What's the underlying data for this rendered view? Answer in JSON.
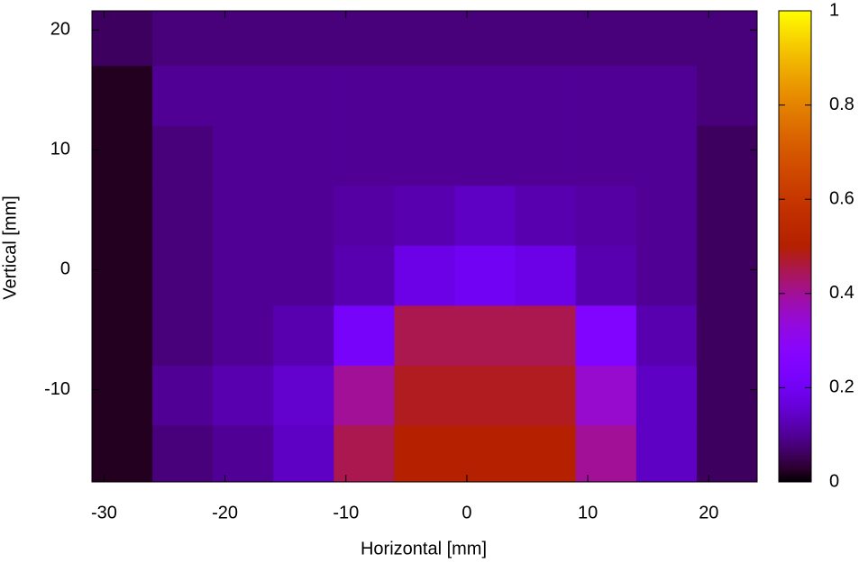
{
  "chart_data": {
    "type": "heatmap",
    "xlabel": "Horizontal [mm]",
    "ylabel": "Vertical [mm]",
    "xlim": [
      -31,
      24
    ],
    "ylim": [
      -17.7,
      21.6
    ],
    "xticks": [
      -30,
      -20,
      -10,
      0,
      10,
      20
    ],
    "yticks": [
      -10,
      0,
      10,
      20
    ],
    "x_edges": [
      -31,
      -26,
      -21,
      -16,
      -11,
      -6,
      -1,
      4,
      9,
      14,
      19,
      24
    ],
    "y_edges": [
      21.6,
      17,
      12,
      7,
      2,
      -3,
      -8,
      -13,
      -17.7
    ],
    "z": [
      [
        0.06,
        0.08,
        0.08,
        0.08,
        0.08,
        0.08,
        0.08,
        0.08,
        0.08,
        0.08,
        0.08
      ],
      [
        0.02,
        0.1,
        0.1,
        0.1,
        0.1,
        0.1,
        0.1,
        0.1,
        0.1,
        0.1,
        0.08
      ],
      [
        0.02,
        0.08,
        0.1,
        0.1,
        0.1,
        0.1,
        0.1,
        0.1,
        0.1,
        0.1,
        0.06
      ],
      [
        0.02,
        0.08,
        0.1,
        0.1,
        0.11,
        0.12,
        0.14,
        0.12,
        0.11,
        0.1,
        0.06
      ],
      [
        0.02,
        0.08,
        0.1,
        0.1,
        0.12,
        0.18,
        0.2,
        0.18,
        0.12,
        0.1,
        0.06
      ],
      [
        0.02,
        0.08,
        0.1,
        0.12,
        0.22,
        0.45,
        0.45,
        0.45,
        0.25,
        0.12,
        0.06
      ],
      [
        0.02,
        0.1,
        0.12,
        0.15,
        0.4,
        0.48,
        0.48,
        0.48,
        0.35,
        0.14,
        0.06
      ],
      [
        0.02,
        0.08,
        0.1,
        0.14,
        0.45,
        0.5,
        0.5,
        0.5,
        0.4,
        0.14,
        0.06
      ]
    ],
    "cblim": [
      0,
      1
    ],
    "cbticks": [
      0,
      0.2,
      0.4,
      0.6,
      0.8,
      1
    ]
  }
}
